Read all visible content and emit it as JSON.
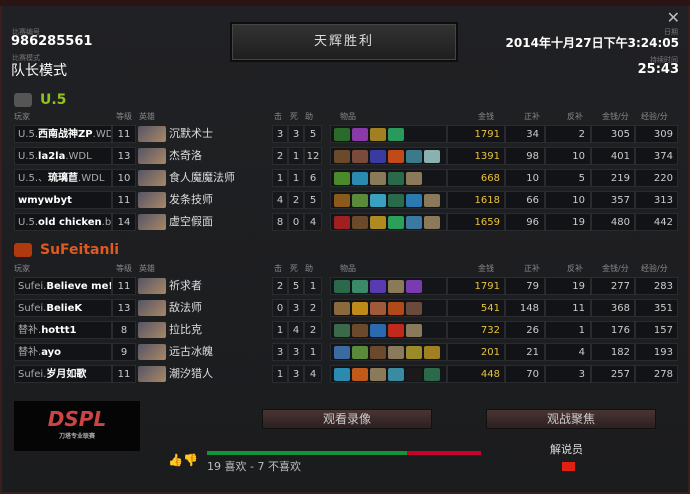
{
  "match": {
    "id_label": "比赛编号",
    "id": "986285561",
    "mode_label": "比赛模式",
    "mode": "队长模式",
    "result": "天辉胜利",
    "date_label": "日期",
    "date": "2014年十月27日下午3:24:05",
    "duration_label": "持续时间",
    "duration": "25:43"
  },
  "columns": {
    "player": "玩家",
    "level": "等级",
    "hero": "英雄",
    "k": "击",
    "d": "死",
    "a": "助",
    "items": "物品",
    "gold": "金钱",
    "lh": "正补",
    "dn": "反补",
    "gpm": "金钱/分",
    "xpm": "经验/分"
  },
  "radiant": {
    "name": "U.5",
    "color": "#8ec41c",
    "players": [
      {
        "prefix": "U.5.",
        "name": "西南战神ZP",
        "suffix": ".WDL",
        "level": "11",
        "hero": "沉默术士",
        "k": "3",
        "d": "3",
        "a": "5",
        "gold": "1791",
        "lh": "34",
        "dn": "2",
        "gpm": "305",
        "xpm": "309",
        "items": [
          "#2a6a2a",
          "#8a3aa8",
          "#a08020",
          "#2a9a5a"
        ]
      },
      {
        "prefix": "U.5.",
        "name": "la2la",
        "suffix": ".WDL",
        "level": "13",
        "hero": "杰奇洛",
        "k": "2",
        "d": "1",
        "a": "12",
        "gold": "1391",
        "lh": "98",
        "dn": "10",
        "gpm": "401",
        "xpm": "374",
        "items": [
          "#6a4a2a",
          "#7a4a3a",
          "#3a3aa0",
          "#c04a1a",
          "#3a7a8a",
          "#8ab0b0"
        ]
      },
      {
        "prefix": "U.5.、",
        "name": "琉璃苣",
        "suffix": ".WDL",
        "level": "10",
        "hero": "食人魔魔法师",
        "k": "1",
        "d": "1",
        "a": "6",
        "gold": "668",
        "lh": "10",
        "dn": "5",
        "gpm": "219",
        "xpm": "220",
        "items": [
          "#4a8a2a",
          "#2a8ab0",
          "#8a7a5a",
          "#2a6a4a",
          "#8a7a5a"
        ]
      },
      {
        "prefix": "",
        "name": "wmywbyt",
        "suffix": "",
        "level": "11",
        "hero": "发条技师",
        "k": "4",
        "d": "2",
        "a": "5",
        "gold": "1618",
        "lh": "66",
        "dn": "10",
        "gpm": "357",
        "xpm": "313",
        "items": [
          "#8a5a1a",
          "#5a8a3a",
          "#3aa0c0",
          "#2a6a4a",
          "#2a7ab0",
          "#8a7a5a"
        ]
      },
      {
        "prefix": "U.5.",
        "name": "old chicken",
        "suffix": ".burden",
        "level": "14",
        "hero": "虚空假面",
        "k": "8",
        "d": "0",
        "a": "4",
        "gold": "1659",
        "lh": "96",
        "dn": "19",
        "gpm": "480",
        "xpm": "442",
        "items": [
          "#a02020",
          "#6a4a2a",
          "#b08a20",
          "#2aa05a",
          "#3a7aa0",
          "#8a7a5a"
        ]
      }
    ]
  },
  "dire": {
    "name": "SuFeitanli",
    "color": "#e05a20",
    "players": [
      {
        "prefix": "Sufei.",
        "name": "Believe me!!",
        "suffix": "",
        "level": "11",
        "hero": "祈求者",
        "k": "2",
        "d": "5",
        "a": "1",
        "gold": "1791",
        "lh": "79",
        "dn": "19",
        "gpm": "277",
        "xpm": "283",
        "items": [
          "#2a6a4a",
          "#3a8a6a",
          "#5a3ab0",
          "#8a7a5a",
          "#7a3ab0"
        ]
      },
      {
        "prefix": "Sufei.",
        "name": "BelieK",
        "suffix": "",
        "level": "13",
        "hero": "敌法师",
        "k": "0",
        "d": "3",
        "a": "2",
        "gold": "541",
        "lh": "148",
        "dn": "11",
        "gpm": "368",
        "xpm": "351",
        "items": [
          "#8a6a3a",
          "#c08a1a",
          "#a05a3a",
          "#b04a1a",
          "#6a4a3a"
        ]
      },
      {
        "prefix": "替补.",
        "name": "hottt1",
        "suffix": "",
        "level": "8",
        "hero": "拉比克",
        "k": "1",
        "d": "4",
        "a": "2",
        "gold": "732",
        "lh": "26",
        "dn": "1",
        "gpm": "176",
        "xpm": "157",
        "items": [
          "#3a6a4a",
          "#6a4a2a",
          "#2a6ab0",
          "#c02a1a",
          "#8a7a5a"
        ]
      },
      {
        "prefix": "替补.",
        "name": "ayo",
        "suffix": "",
        "level": "9",
        "hero": "远古冰魄",
        "k": "3",
        "d": "3",
        "a": "1",
        "gold": "201",
        "lh": "21",
        "dn": "4",
        "gpm": "182",
        "xpm": "193",
        "items": [
          "#3a6aa0",
          "#5a8a3a",
          "#6a4a2a",
          "#8a7a5a",
          "#9a8a2a",
          "#a08020"
        ]
      },
      {
        "prefix": "Sufei.",
        "name": "岁月如歌",
        "suffix": "",
        "level": "11",
        "hero": "潮汐猎人",
        "k": "1",
        "d": "3",
        "a": "4",
        "gold": "448",
        "lh": "70",
        "dn": "3",
        "gpm": "257",
        "xpm": "278",
        "items": [
          "#2a8ab0",
          "#c05a1a",
          "#8a7a5a",
          "#3a8aa0",
          "#1a1a1a",
          "#2a6a4a"
        ]
      }
    ]
  },
  "footer": {
    "logo": "DSPL",
    "logo_sub": "刀塔专业联赛",
    "watch_replay": "观看录像",
    "spectate": "观战聚焦",
    "likes": 19,
    "dislikes": 7,
    "votes_text": "19 喜欢 - 7 不喜欢",
    "caster_label": "解说员",
    "caster_flag": "#e02010"
  }
}
